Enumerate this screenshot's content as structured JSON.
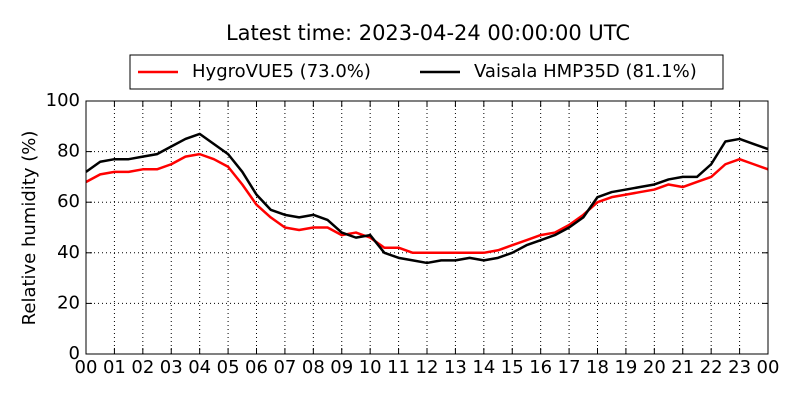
{
  "chart_data": {
    "type": "line",
    "title": "Latest time: 2023-04-24 00:00:00 UTC",
    "y_label": "Relative humidity (%)",
    "x": [
      0,
      0.5,
      1,
      1.5,
      2,
      2.5,
      3,
      3.5,
      4,
      4.5,
      5,
      5.5,
      6,
      6.5,
      7,
      7.5,
      8,
      8.5,
      9,
      9.5,
      10,
      10.5,
      11,
      11.5,
      12,
      12.5,
      13,
      13.5,
      14,
      14.5,
      15,
      15.5,
      16,
      16.5,
      17,
      17.5,
      18,
      18.5,
      19,
      19.5,
      20,
      20.5,
      21,
      21.5,
      22,
      22.5,
      23,
      23.5,
      24
    ],
    "series": [
      {
        "name": "HygroVUE5 (73.0%)",
        "color": "#ff0000",
        "values": [
          68,
          71,
          72,
          72,
          73,
          73,
          75,
          78,
          79,
          77,
          74,
          67,
          59,
          54,
          50,
          49,
          50,
          50,
          47,
          48,
          46,
          42,
          42,
          40,
          40,
          40,
          40,
          40,
          40,
          41,
          43,
          45,
          47,
          48,
          51,
          55,
          60,
          62,
          63,
          64,
          65,
          67,
          66,
          68,
          70,
          75,
          77,
          75,
          73
        ]
      },
      {
        "name": "Vaisala HMP35D (81.1%)",
        "color": "#000000",
        "values": [
          72,
          76,
          77,
          77,
          78,
          79,
          82,
          85,
          87,
          83,
          79,
          72,
          63,
          57,
          55,
          54,
          55,
          53,
          48,
          46,
          47,
          40,
          38,
          37,
          36,
          37,
          37,
          38,
          37,
          38,
          40,
          43,
          45,
          47,
          50,
          54,
          62,
          64,
          65,
          66,
          67,
          69,
          70,
          70,
          75,
          84,
          85,
          83,
          81
        ]
      }
    ],
    "xlim": [
      0,
      24
    ],
    "xticks": [
      {
        "value": 0,
        "label": "00"
      },
      {
        "value": 1,
        "label": "01"
      },
      {
        "value": 2,
        "label": "02"
      },
      {
        "value": 3,
        "label": "03"
      },
      {
        "value": 4,
        "label": "04"
      },
      {
        "value": 5,
        "label": "05"
      },
      {
        "value": 6,
        "label": "06"
      },
      {
        "value": 7,
        "label": "07"
      },
      {
        "value": 8,
        "label": "08"
      },
      {
        "value": 9,
        "label": "09"
      },
      10,
      11,
      12,
      13,
      14,
      15,
      16,
      17,
      18,
      19,
      20,
      21,
      22,
      23,
      {
        "value": 24,
        "label": "00"
      }
    ],
    "ylim": [
      0,
      100
    ],
    "yticks": [
      0,
      20,
      40,
      60,
      80,
      100
    ],
    "grid": true,
    "legend": "top"
  }
}
